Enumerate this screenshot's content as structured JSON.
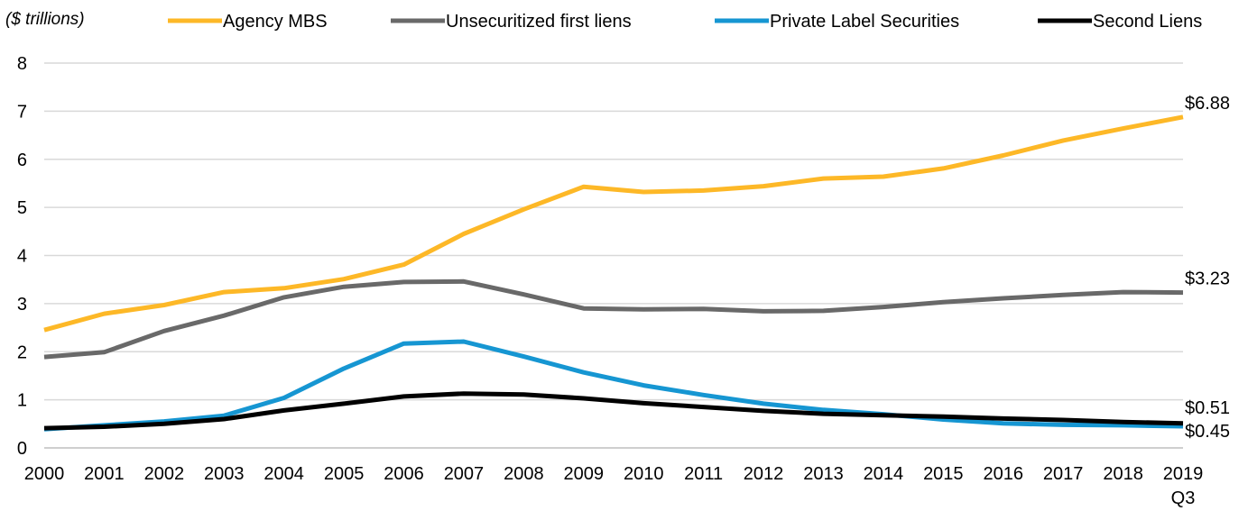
{
  "chart_data": {
    "type": "line",
    "unit_label": "($ trillions)",
    "categories": [
      "2000",
      "2001",
      "2002",
      "2003",
      "2004",
      "2005",
      "2006",
      "2007",
      "2008",
      "2009",
      "2010",
      "2011",
      "2012",
      "2013",
      "2014",
      "2015",
      "2016",
      "2017",
      "2018",
      "2019"
    ],
    "last_category_sublabel": "Q3",
    "ylim": [
      0,
      8
    ],
    "yticks": [
      0,
      1,
      2,
      3,
      4,
      5,
      6,
      7,
      8
    ],
    "grid": true,
    "legend_position": "top",
    "series": [
      {
        "name": "Agency MBS",
        "color": "#fdb827",
        "values": [
          2.45,
          2.79,
          2.97,
          3.24,
          3.32,
          3.51,
          3.81,
          4.45,
          4.96,
          5.43,
          5.32,
          5.35,
          5.44,
          5.6,
          5.64,
          5.81,
          6.08,
          6.39,
          6.64,
          6.88
        ],
        "end_label": "$6.88"
      },
      {
        "name": "Unsecuritized first liens",
        "color": "#696969",
        "values": [
          1.89,
          1.99,
          2.43,
          2.75,
          3.13,
          3.35,
          3.45,
          3.46,
          3.19,
          2.9,
          2.88,
          2.89,
          2.84,
          2.85,
          2.93,
          3.03,
          3.11,
          3.18,
          3.24,
          3.23
        ],
        "end_label": "$3.23"
      },
      {
        "name": "Private Label Securities",
        "color": "#1696d2",
        "values": [
          0.39,
          0.47,
          0.55,
          0.67,
          1.04,
          1.65,
          2.17,
          2.21,
          1.9,
          1.57,
          1.3,
          1.1,
          0.92,
          0.79,
          0.7,
          0.59,
          0.51,
          0.48,
          0.47,
          0.45
        ],
        "end_label": "$0.45"
      },
      {
        "name": "Second Liens",
        "color": "#000000",
        "values": [
          0.41,
          0.44,
          0.5,
          0.6,
          0.78,
          0.92,
          1.07,
          1.13,
          1.11,
          1.03,
          0.93,
          0.85,
          0.77,
          0.71,
          0.68,
          0.65,
          0.61,
          0.58,
          0.54,
          0.51
        ],
        "end_label": "$0.51"
      }
    ]
  }
}
